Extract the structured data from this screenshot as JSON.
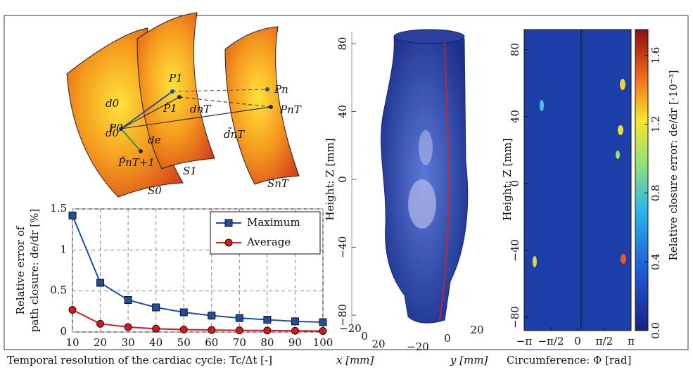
{
  "diagram": {
    "labels": [
      "P0",
      "P1",
      "Pn",
      "PnT",
      "P̃1",
      "P̃nT+1",
      "d0",
      "d̃0",
      "dnT",
      "d̃nT",
      "de",
      "S0",
      "S1",
      "SnT"
    ]
  },
  "chart_data": [
    {
      "type": "line",
      "xlabel": "Temporal resolution of the cardiac cycle: Tc/Δt [-]",
      "ylabel": [
        "Relative error of",
        "path closure: de/dr [%]"
      ],
      "x": [
        10,
        20,
        30,
        40,
        50,
        60,
        70,
        80,
        90,
        100
      ],
      "series": [
        {
          "name": "Maximum",
          "color": "#1f4e9c",
          "marker": "square",
          "values": [
            1.42,
            0.6,
            0.39,
            0.3,
            0.24,
            0.2,
            0.17,
            0.15,
            0.13,
            0.12
          ]
        },
        {
          "name": "Average",
          "color": "#d7191c",
          "marker": "circle",
          "values": [
            0.27,
            0.1,
            0.06,
            0.04,
            0.03,
            0.025,
            0.02,
            0.018,
            0.015,
            0.013
          ]
        }
      ],
      "xlim": [
        10,
        100
      ],
      "xticks": [
        10,
        20,
        30,
        40,
        50,
        60,
        70,
        80,
        90,
        100
      ],
      "ylim": [
        0,
        1.5
      ],
      "yticks": [
        0,
        0.5,
        1,
        1.5
      ],
      "grid": true,
      "legend": "top-right"
    },
    {
      "type": "surface3d",
      "zlabel": "Height: Z [mm]",
      "xlabel": "x [mm]",
      "ylabel": "y [mm]",
      "zlim": [
        -80,
        80
      ],
      "zticks": [
        {
          "value": -80,
          "label": "−80"
        },
        {
          "value": -40,
          "label": "−40"
        },
        0,
        40,
        80
      ],
      "xlim": [
        -20,
        20
      ],
      "xticks": [
        {
          "value": -20,
          "label": "−20"
        },
        0,
        20
      ],
      "ylim": [
        -20,
        20
      ],
      "yticks": [
        {
          "value": -20,
          "label": "−20"
        },
        0,
        20
      ]
    },
    {
      "type": "heatmap",
      "ylabel": "Height: Z [mm]",
      "xlabel": "Circumference: Φ [rad]",
      "xlim": [
        -3.1416,
        3.1416
      ],
      "xticks": [
        {
          "value": -3.1416,
          "label": "−π"
        },
        {
          "value": -1.5708,
          "label": "−π/2"
        },
        0,
        {
          "value": 1.5708,
          "label": "π/2"
        },
        {
          "value": 3.1416,
          "label": "π"
        }
      ],
      "ylim": [
        -88,
        92
      ],
      "yticks": [
        {
          "value": -80,
          "label": "−80"
        },
        {
          "value": -40,
          "label": "−40"
        },
        0,
        40,
        80
      ],
      "colorbar_label": "Relative closure error: de/dr [·10⁻³]",
      "clim": [
        0,
        1.75
      ],
      "cticks": [
        {
          "value": 0,
          "label": "0.0"
        },
        0.4,
        0.8,
        1.2,
        1.6
      ]
    }
  ]
}
